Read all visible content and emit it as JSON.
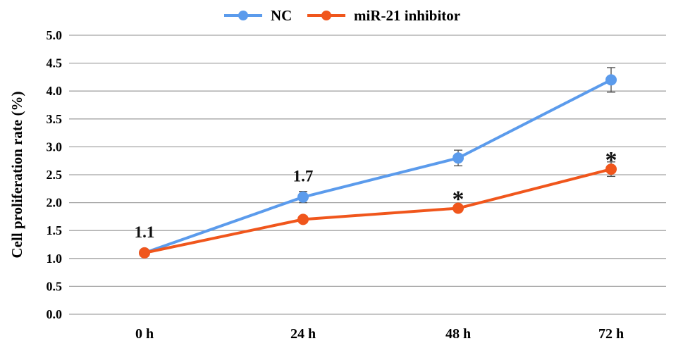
{
  "chart_data": {
    "type": "line",
    "title": "",
    "xlabel": "",
    "ylabel": "Cell proliferation rate (%)",
    "categories": [
      "0 h",
      "24 h",
      "48 h",
      "72 h"
    ],
    "ylim": [
      0,
      5
    ],
    "yticks": [
      "0.0",
      "0.5",
      "1.0",
      "1.5",
      "2.0",
      "2.5",
      "3.0",
      "3.5",
      "4.0",
      "4.5",
      "5.0"
    ],
    "grid": true,
    "legend_position": "top-center",
    "series": [
      {
        "name": "NC",
        "color": "#5b9bec",
        "values": [
          1.1,
          2.1,
          2.8,
          4.2
        ],
        "errors": [
          0.03,
          0.1,
          0.14,
          0.22
        ]
      },
      {
        "name": "miR-21 inhibitor",
        "color": "#f0561c",
        "values": [
          1.1,
          1.7,
          1.9,
          2.6
        ],
        "errors": [
          0.03,
          0.06,
          0.06,
          0.13
        ]
      }
    ],
    "annotations": [
      {
        "category": "0 h",
        "text": "1.1",
        "y": 1.1
      },
      {
        "category": "24 h",
        "text": "1.7",
        "y": 2.1
      },
      {
        "category": "48 h",
        "text": "*",
        "y": 1.9
      },
      {
        "category": "72 h",
        "text": "*",
        "y": 2.6
      }
    ]
  }
}
